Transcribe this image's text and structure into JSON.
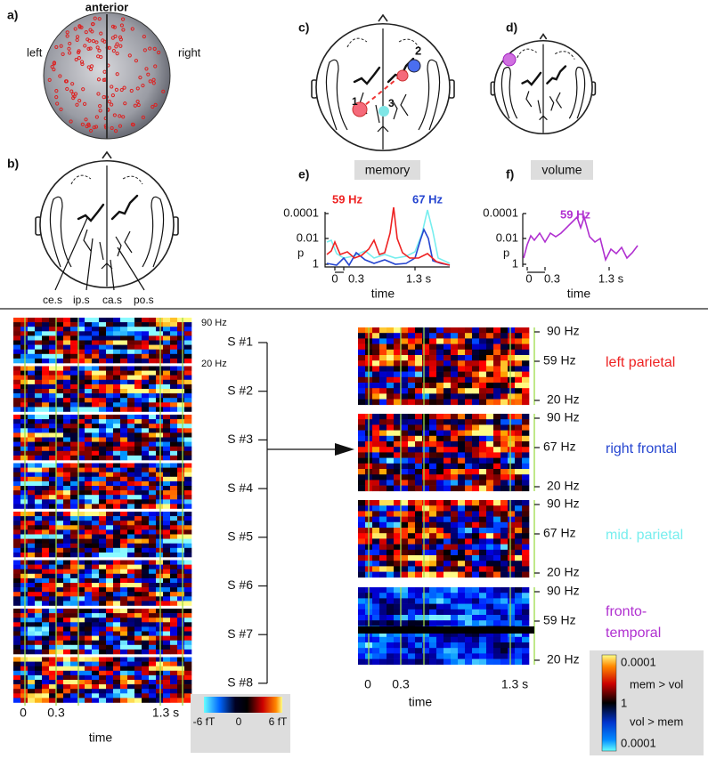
{
  "panel_a": {
    "label": "a)",
    "anterior": "anterior",
    "left": "left",
    "right": "right"
  },
  "panel_b": {
    "label": "b)",
    "sulci": [
      "ce.s",
      "ip.s",
      "ca.s",
      "po.s"
    ]
  },
  "panel_c": {
    "label": "c)",
    "markers": [
      "1",
      "2",
      "3"
    ]
  },
  "panel_d": {
    "label": "d)"
  },
  "panel_e": {
    "label": "e)",
    "title": "memory",
    "annotations": [
      "59 Hz",
      "67 Hz"
    ],
    "y_label": "p",
    "y_ticks": [
      "0.0001",
      "0.01",
      "1"
    ],
    "x_ticks": [
      "0",
      "0.3",
      "1.3 s"
    ],
    "x_label": "time"
  },
  "panel_f": {
    "label": "f)",
    "title": "volume",
    "annotations": [
      "59 Hz"
    ],
    "y_label": "p",
    "y_ticks": [
      "0.0001",
      "0.01",
      "1"
    ],
    "x_ticks": [
      "0",
      "0.3",
      "1.3 s"
    ],
    "x_label": "time"
  },
  "subject_spectrograms": {
    "freq_labels": [
      "90 Hz",
      "20 Hz"
    ],
    "subjects": [
      "S #1",
      "S #2",
      "S #3",
      "S #4",
      "S #5",
      "S #6",
      "S #7",
      "S #8"
    ],
    "x_ticks": [
      "0",
      "0.3",
      "1.3 s"
    ],
    "x_label": "time",
    "colorbar_labels": [
      "-6 fT",
      "0",
      "6 fT"
    ]
  },
  "region_spectrograms": {
    "rows": [
      {
        "region_lines": [
          "left parietal"
        ],
        "freq_labels": [
          "90 Hz",
          "59 Hz",
          "20 Hz"
        ]
      },
      {
        "region_lines": [
          "right frontal"
        ],
        "freq_labels": [
          "90 Hz",
          "67 Hz",
          "20 Hz"
        ]
      },
      {
        "region_lines": [
          "mid. parietal"
        ],
        "freq_labels": [
          "90 Hz",
          "67 Hz",
          "20 Hz"
        ]
      },
      {
        "region_lines": [
          "fronto-",
          "temporal"
        ],
        "freq_labels": [
          "90 Hz",
          "59 Hz",
          "20 Hz"
        ]
      }
    ],
    "x_ticks": [
      "0",
      "0.3",
      "1.3 s"
    ],
    "x_label": "time",
    "colorbar_labels": [
      "0.0001",
      "mem > vol",
      "1",
      "vol > mem",
      "0.0001"
    ]
  }
}
